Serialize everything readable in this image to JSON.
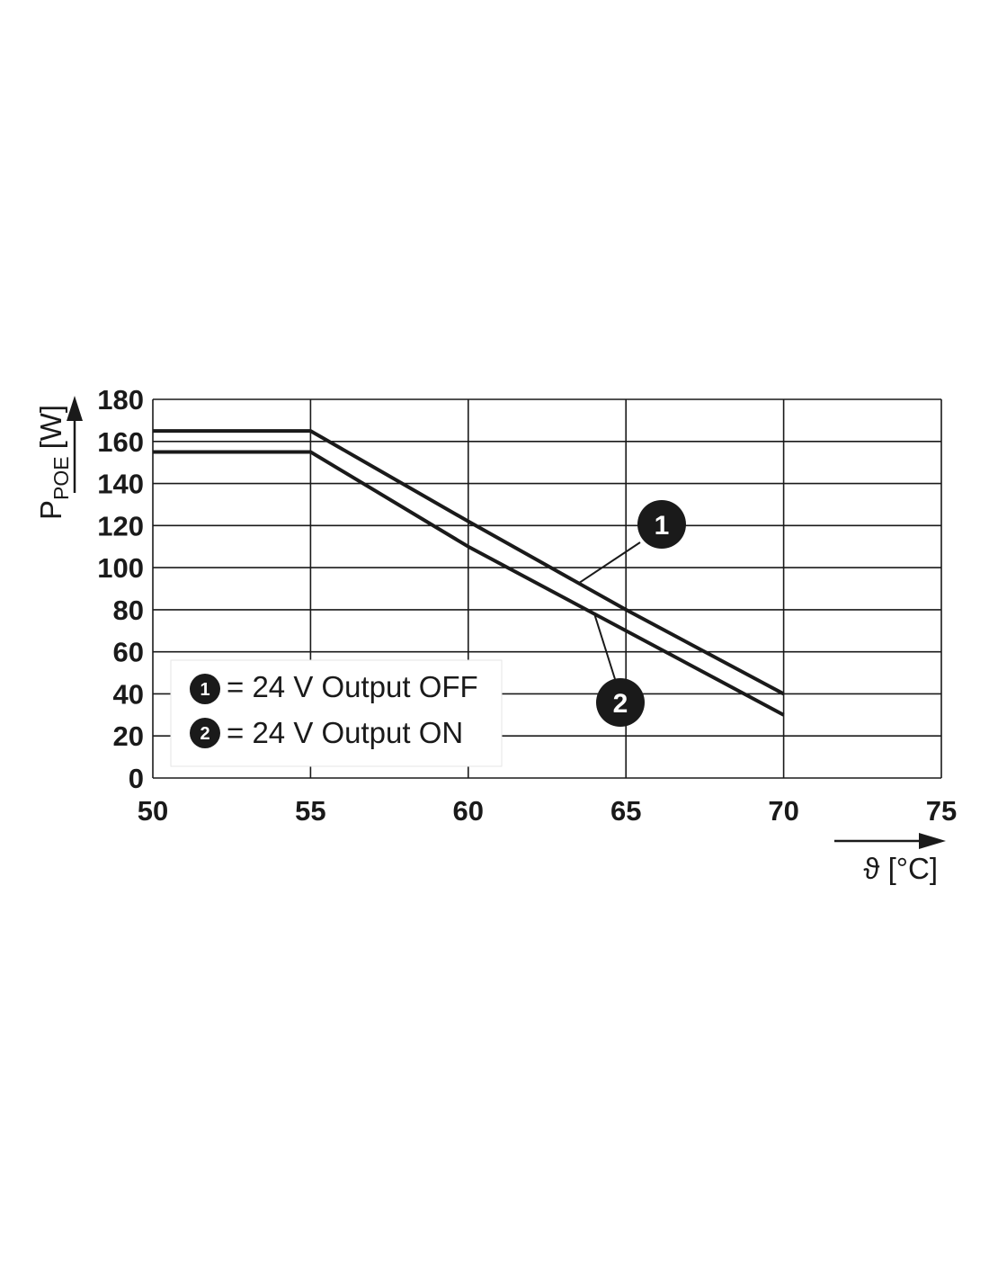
{
  "chart_data": {
    "type": "line",
    "xlabel": "ϑ [°C]",
    "ylabel": {
      "main": "P",
      "subscript": "POE",
      "unit": "[W]"
    },
    "xlim": [
      50,
      75
    ],
    "ylim": [
      0,
      180
    ],
    "x_ticks": [
      50,
      55,
      60,
      65,
      70,
      75
    ],
    "y_ticks": [
      0,
      20,
      40,
      60,
      80,
      100,
      120,
      140,
      160,
      180
    ],
    "grid": true,
    "legend_position": "bottom-left",
    "series": [
      {
        "id": "1",
        "name": "= 24 V Output OFF",
        "marker": "1",
        "x": [
          50,
          55,
          60,
          65,
          70
        ],
        "y": [
          165,
          165,
          122,
          80,
          40
        ]
      },
      {
        "id": "2",
        "name": "= 24 V Output ON",
        "marker": "2",
        "x": [
          50,
          55,
          60,
          65,
          70
        ],
        "y": [
          155,
          155,
          110,
          70,
          30
        ]
      }
    ],
    "callouts": [
      {
        "marker": "1",
        "points_to_x": 63.5
      },
      {
        "marker": "2",
        "points_to_x": 64.0
      }
    ]
  },
  "colors": {
    "line": "#1a1a1a",
    "grid": "#1a1a1a",
    "background": "#ffffff"
  }
}
